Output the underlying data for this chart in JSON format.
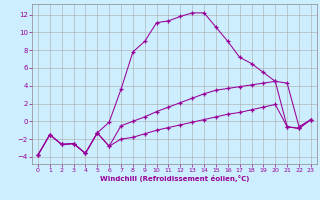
{
  "xlabel": "Windchill (Refroidissement éolien,°C)",
  "background_color": "#cceeff",
  "line_color": "#990099",
  "xlim": [
    -0.5,
    23.5
  ],
  "ylim": [
    -4.8,
    13.2
  ],
  "xticks": [
    0,
    1,
    2,
    3,
    4,
    5,
    6,
    7,
    8,
    9,
    10,
    11,
    12,
    13,
    14,
    15,
    16,
    17,
    18,
    19,
    20,
    21,
    22,
    23
  ],
  "yticks": [
    -4,
    -2,
    0,
    2,
    4,
    6,
    8,
    10,
    12
  ],
  "curve1_x": [
    0,
    1,
    2,
    3,
    4,
    5,
    6,
    7,
    8,
    9,
    10,
    11,
    12,
    13,
    14,
    15,
    16,
    17,
    18,
    19,
    20,
    21,
    22,
    23
  ],
  "curve1_y": [
    -3.8,
    -1.5,
    -2.6,
    -2.5,
    -3.6,
    -1.3,
    -0.1,
    3.6,
    7.8,
    9.0,
    11.1,
    11.3,
    11.8,
    12.2,
    12.2,
    10.6,
    9.0,
    7.2,
    6.5,
    5.5,
    4.5,
    4.3,
    -0.6,
    0.2
  ],
  "curve2_x": [
    0,
    1,
    2,
    3,
    4,
    5,
    6,
    7,
    8,
    9,
    10,
    11,
    12,
    13,
    14,
    15,
    16,
    17,
    18,
    19,
    20,
    21,
    22,
    23
  ],
  "curve2_y": [
    -3.8,
    -1.5,
    -2.6,
    -2.5,
    -3.6,
    -1.3,
    -2.8,
    -0.5,
    0.0,
    0.5,
    1.1,
    1.6,
    2.1,
    2.6,
    3.1,
    3.5,
    3.7,
    3.9,
    4.1,
    4.3,
    4.5,
    -0.6,
    -0.8,
    0.2
  ],
  "curve3_x": [
    0,
    1,
    2,
    3,
    4,
    5,
    6,
    7,
    8,
    9,
    10,
    11,
    12,
    13,
    14,
    15,
    16,
    17,
    18,
    19,
    20,
    21,
    22,
    23
  ],
  "curve3_y": [
    -3.8,
    -1.5,
    -2.6,
    -2.5,
    -3.6,
    -1.3,
    -2.8,
    -2.0,
    -1.8,
    -1.4,
    -1.0,
    -0.7,
    -0.4,
    -0.1,
    0.2,
    0.5,
    0.8,
    1.0,
    1.3,
    1.6,
    1.9,
    -0.6,
    -0.8,
    0.2
  ]
}
